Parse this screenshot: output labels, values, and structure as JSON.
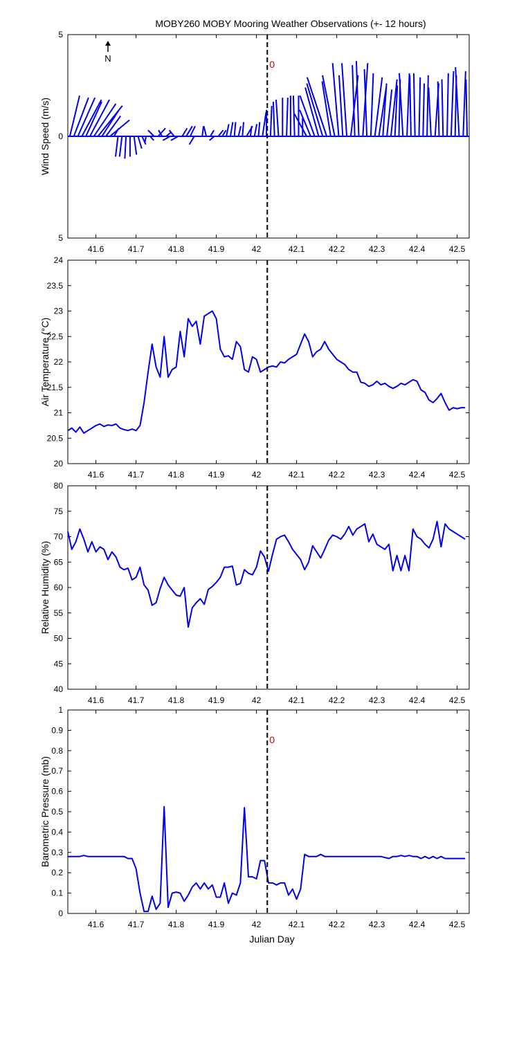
{
  "figure": {
    "title": "MOBY260 MOBY Mooring Weather Observations (+- 12 hours)",
    "xlabel": "Julian Day",
    "north_label": "N",
    "line_color": "#0000ee",
    "marker_color": "#cc0000",
    "marker_x": 42.027
  },
  "chart_data": [
    {
      "type": "line",
      "subtype": "wind-stick",
      "ylabel": "Wind Speed (m/s)",
      "xlim": [
        41.53,
        42.53
      ],
      "ylim": [
        -5,
        5
      ],
      "yticks": [
        5,
        0,
        5
      ],
      "xticks": [
        41.6,
        41.7,
        41.8,
        41.9,
        42,
        42.1,
        42.2,
        42.3,
        42.4,
        42.5
      ],
      "annotation": "0",
      "series": [
        {
          "x": [
            41.535,
            41.545,
            41.555,
            41.565,
            41.575,
            41.585,
            41.595,
            41.605,
            41.615,
            41.625,
            41.635,
            41.645,
            41.655,
            41.665,
            41.675,
            41.685,
            41.695,
            41.705,
            41.715,
            41.725,
            41.735,
            41.745,
            41.755,
            41.765,
            41.775,
            41.785,
            41.795,
            41.805,
            41.815,
            41.825,
            41.835,
            41.845,
            41.855,
            41.865,
            41.875,
            41.885,
            41.895,
            41.905,
            41.915,
            41.925,
            41.935,
            41.945,
            41.955,
            41.965,
            41.975,
            41.985,
            41.995,
            42.005,
            42.015,
            42.025,
            42.035,
            42.045,
            42.055,
            42.065,
            42.075,
            42.085,
            42.095,
            42.105,
            42.115,
            42.125,
            42.135,
            42.145,
            42.155,
            42.165,
            42.175,
            42.185,
            42.195,
            42.205,
            42.215,
            42.225,
            42.235,
            42.245,
            42.255,
            42.265,
            42.275,
            42.285,
            42.295,
            42.305,
            42.315,
            42.325,
            42.335,
            42.345,
            42.355,
            42.365,
            42.375,
            42.385,
            42.395,
            42.405,
            42.415,
            42.425,
            42.435,
            42.445,
            42.455,
            42.465,
            42.475,
            42.485,
            42.495,
            42.505,
            42.515,
            42.525
          ],
          "u": [
            0.8,
            1.2,
            1.4,
            1.6,
            1.3,
            1.6,
            1.8,
            2.0,
            1.4,
            1.2,
            1.6,
            0.4,
            -0.2,
            -0.2,
            -0.1,
            0.0,
            0.2,
            0.3,
            0.3,
            -0.1,
            0.3,
            -0.5,
            0.6,
            -0.3,
            0.4,
            -0.6,
            -0.4,
            -0.6,
            0.4,
            0.5,
            0.4,
            -0.4,
            0.0,
            0.1,
            -0.2,
            0.3,
            -0.4,
            0.4,
            0.3,
            0.2,
            0.2,
            0.1,
            0.2,
            0.1,
            0.5,
            0.1,
            0.2,
            0.1,
            0.3,
            0.0,
            0.1,
            -0.1,
            -0.2,
            0.0,
            0.1,
            0.0,
            -0.1,
            0.0,
            0.0,
            -1.0,
            -0.9,
            -1.2,
            -1.1,
            -1.3,
            -1.6,
            -0.7,
            -1.0,
            -0.5,
            -0.3,
            -0.4,
            0.6,
            -0.2,
            -0.2,
            0.4,
            -0.2,
            0.2,
            0.6,
            0.6,
            0.3,
            0.4,
            0.5,
            0.2,
            0.1,
            -0.3,
            0.2,
            -0.1,
            -0.1,
            0.1,
            0.1,
            0.1,
            -0.2,
            0.3,
            -0.1,
            -0.1,
            0.1,
            0.2,
            0.1,
            -0.3,
            0.2,
            -0.1
          ],
          "v": [
            2.0,
            1.9,
            1.9,
            1.8,
            1.7,
            1.8,
            1.6,
            1.5,
            1.3,
            1.0,
            0.8,
            0.4,
            -1.0,
            -1.0,
            -1.1,
            -1.0,
            -0.9,
            -0.6,
            -0.4,
            -0.3,
            -0.2,
            0.3,
            0.4,
            0.3,
            0.2,
            -0.2,
            0.3,
            -0.2,
            0.4,
            0.5,
            0.5,
            -0.4,
            0.0,
            0.5,
            0.5,
            0.3,
            -0.2,
            0.3,
            0.3,
            0.6,
            0.7,
            0.7,
            0.5,
            0.7,
            0.5,
            0.5,
            0.6,
            0.7,
            1.2,
            1.3,
            1.5,
            1.7,
            1.8,
            1.9,
            1.9,
            2.0,
            2.0,
            2.0,
            0.9,
            1.1,
            1.3,
            2.0,
            2.4,
            2.6,
            2.9,
            2.7,
            3.0,
            3.6,
            3.0,
            3.6,
            3.0,
            3.5,
            3.7,
            3.6,
            3.3,
            3.1,
            2.9,
            2.4,
            2.6,
            2.3,
            2.8,
            2.5,
            2.8,
            3.1,
            3.1,
            3.0,
            3.1,
            2.9,
            2.6,
            3.0,
            2.4,
            2.6,
            2.7,
            2.8,
            3.1,
            3.2,
            3.0,
            3.4,
            3.2,
            2.8
          ]
        }
      ]
    },
    {
      "type": "line",
      "ylabel": "Air Temperature (°C)",
      "xlim": [
        41.53,
        42.53
      ],
      "ylim": [
        20,
        24
      ],
      "yticks": [
        20,
        20.5,
        21,
        21.5,
        22,
        22.5,
        23,
        23.5,
        24
      ],
      "xticks": [
        41.6,
        41.7,
        41.8,
        41.9,
        42,
        42.1,
        42.2,
        42.3,
        42.4,
        42.5
      ],
      "series": [
        {
          "x": [
            41.53,
            41.54,
            41.55,
            41.56,
            41.57,
            41.58,
            41.59,
            41.6,
            41.61,
            41.62,
            41.63,
            41.64,
            41.65,
            41.66,
            41.67,
            41.68,
            41.69,
            41.7,
            41.71,
            41.72,
            41.73,
            41.74,
            41.75,
            41.76,
            41.77,
            41.78,
            41.79,
            41.8,
            41.81,
            41.82,
            41.83,
            41.84,
            41.85,
            41.86,
            41.87,
            41.88,
            41.89,
            41.9,
            41.91,
            41.92,
            41.93,
            41.94,
            41.95,
            41.96,
            41.97,
            41.98,
            41.99,
            42.0,
            42.01,
            42.02,
            42.03,
            42.04,
            42.05,
            42.06,
            42.07,
            42.08,
            42.09,
            42.1,
            42.11,
            42.12,
            42.13,
            42.14,
            42.15,
            42.16,
            42.17,
            42.18,
            42.19,
            42.2,
            42.21,
            42.22,
            42.23,
            42.24,
            42.25,
            42.26,
            42.27,
            42.28,
            42.29,
            42.3,
            42.31,
            42.32,
            42.33,
            42.34,
            42.35,
            42.36,
            42.37,
            42.38,
            42.39,
            42.4,
            42.41,
            42.42,
            42.43,
            42.44,
            42.45,
            42.46,
            42.47,
            42.48,
            42.49,
            42.5,
            42.51,
            42.52
          ],
          "values": [
            20.65,
            20.7,
            20.62,
            20.72,
            20.6,
            20.65,
            20.7,
            20.75,
            20.78,
            20.73,
            20.76,
            20.75,
            20.78,
            20.7,
            20.67,
            20.65,
            20.68,
            20.65,
            20.75,
            21.2,
            21.8,
            22.35,
            21.9,
            21.7,
            22.5,
            21.7,
            21.85,
            21.9,
            22.6,
            22.1,
            22.85,
            22.7,
            22.8,
            22.35,
            22.9,
            22.95,
            23.0,
            22.85,
            22.25,
            22.1,
            22.12,
            22.05,
            22.4,
            22.3,
            21.85,
            21.8,
            22.1,
            22.05,
            21.8,
            21.85,
            21.9,
            21.92,
            21.9,
            22.0,
            21.98,
            22.05,
            22.1,
            22.15,
            22.35,
            22.55,
            22.4,
            22.1,
            22.2,
            22.25,
            22.4,
            22.25,
            22.15,
            22.05,
            22.0,
            21.95,
            21.85,
            21.8,
            21.8,
            21.6,
            21.58,
            21.52,
            21.55,
            21.62,
            21.55,
            21.58,
            21.52,
            21.48,
            21.52,
            21.58,
            21.55,
            21.6,
            21.65,
            21.62,
            21.45,
            21.4,
            21.25,
            21.2,
            21.28,
            21.38,
            21.2,
            21.05,
            21.1,
            21.08,
            21.1,
            21.1
          ]
        }
      ]
    },
    {
      "type": "line",
      "ylabel": "Relative Humidity (%)",
      "xlim": [
        41.53,
        42.53
      ],
      "ylim": [
        40,
        80
      ],
      "yticks": [
        40,
        45,
        50,
        55,
        60,
        65,
        70,
        75,
        80
      ],
      "xticks": [
        41.6,
        41.7,
        41.8,
        41.9,
        42,
        42.1,
        42.2,
        42.3,
        42.4,
        42.5
      ],
      "series": [
        {
          "x": [
            41.53,
            41.54,
            41.55,
            41.56,
            41.57,
            41.58,
            41.59,
            41.6,
            41.61,
            41.62,
            41.63,
            41.64,
            41.65,
            41.66,
            41.67,
            41.68,
            41.69,
            41.7,
            41.71,
            41.72,
            41.73,
            41.74,
            41.75,
            41.76,
            41.77,
            41.78,
            41.79,
            41.8,
            41.81,
            41.82,
            41.83,
            41.84,
            41.85,
            41.86,
            41.87,
            41.88,
            41.89,
            41.9,
            41.91,
            41.92,
            41.93,
            41.94,
            41.95,
            41.96,
            41.97,
            41.98,
            41.99,
            42.0,
            42.01,
            42.02,
            42.03,
            42.04,
            42.05,
            42.06,
            42.07,
            42.08,
            42.09,
            42.1,
            42.11,
            42.12,
            42.13,
            42.14,
            42.15,
            42.16,
            42.17,
            42.18,
            42.19,
            42.2,
            42.21,
            42.22,
            42.23,
            42.24,
            42.25,
            42.26,
            42.27,
            42.28,
            42.29,
            42.3,
            42.31,
            42.32,
            42.33,
            42.34,
            42.35,
            42.36,
            42.37,
            42.38,
            42.39,
            42.4,
            42.41,
            42.42,
            42.43,
            42.44,
            42.45,
            42.46,
            42.47,
            42.48,
            42.49,
            42.5,
            42.51,
            42.52
          ],
          "values": [
            71,
            67.5,
            69,
            71.5,
            69.5,
            67,
            69,
            67,
            68,
            67.5,
            65.5,
            67,
            66,
            64,
            63.5,
            63.8,
            61.5,
            62,
            64,
            60.5,
            59.5,
            56.5,
            57,
            59.8,
            62,
            60.5,
            59.5,
            58.5,
            58.3,
            60,
            52.2,
            56,
            57,
            57.8,
            56.7,
            59.6,
            60.2,
            61,
            62,
            64,
            64,
            64.2,
            60.5,
            60.8,
            63.5,
            62.8,
            62.5,
            64,
            67.2,
            66,
            63.2,
            66.5,
            69.5,
            70,
            70.3,
            69,
            67.5,
            66.5,
            65.5,
            63.5,
            65,
            68.2,
            67,
            65.8,
            67.5,
            69.3,
            70.3,
            70,
            69.5,
            70.5,
            72,
            70.3,
            71.5,
            72,
            72.5,
            69,
            70.5,
            68.5,
            68,
            67.5,
            68.5,
            63.3,
            66.3,
            63.3,
            66.3,
            63.3,
            71.5,
            70,
            69.5,
            68.5,
            67.8,
            69.5,
            73,
            68,
            72.5,
            71.5,
            71,
            70.5,
            70,
            69.5
          ]
        }
      ]
    },
    {
      "type": "line",
      "ylabel": "Barometric Pressure (mb)",
      "xlim": [
        41.53,
        42.53
      ],
      "ylim": [
        0,
        1
      ],
      "yticks": [
        0,
        0.1,
        0.2,
        0.3,
        0.4,
        0.5,
        0.6,
        0.7,
        0.8,
        0.9,
        1
      ],
      "xticks": [
        41.6,
        41.7,
        41.8,
        41.9,
        42,
        42.1,
        42.2,
        42.3,
        42.4,
        42.5
      ],
      "annotation": "0",
      "series": [
        {
          "x": [
            41.53,
            41.54,
            41.55,
            41.56,
            41.57,
            41.58,
            41.59,
            41.6,
            41.61,
            41.62,
            41.63,
            41.64,
            41.65,
            41.66,
            41.67,
            41.68,
            41.69,
            41.7,
            41.71,
            41.72,
            41.73,
            41.74,
            41.75,
            41.76,
            41.77,
            41.78,
            41.79,
            41.8,
            41.81,
            41.82,
            41.83,
            41.84,
            41.85,
            41.86,
            41.87,
            41.88,
            41.89,
            41.9,
            41.91,
            41.92,
            41.93,
            41.94,
            41.95,
            41.96,
            41.97,
            41.98,
            41.99,
            42.0,
            42.01,
            42.02,
            42.03,
            42.04,
            42.05,
            42.06,
            42.07,
            42.08,
            42.09,
            42.1,
            42.11,
            42.12,
            42.13,
            42.14,
            42.15,
            42.16,
            42.17,
            42.18,
            42.19,
            42.2,
            42.21,
            42.22,
            42.23,
            42.24,
            42.25,
            42.26,
            42.27,
            42.28,
            42.29,
            42.3,
            42.31,
            42.32,
            42.33,
            42.34,
            42.35,
            42.36,
            42.37,
            42.38,
            42.39,
            42.4,
            42.41,
            42.42,
            42.43,
            42.44,
            42.45,
            42.46,
            42.47,
            42.48,
            42.49,
            42.5,
            42.51,
            42.52
          ],
          "values": [
            0.28,
            0.28,
            0.28,
            0.28,
            0.285,
            0.28,
            0.28,
            0.28,
            0.28,
            0.28,
            0.28,
            0.28,
            0.28,
            0.28,
            0.28,
            0.27,
            0.27,
            0.22,
            0.1,
            0.01,
            0.01,
            0.085,
            0.02,
            0.05,
            0.525,
            0.03,
            0.1,
            0.105,
            0.1,
            0.06,
            0.09,
            0.13,
            0.15,
            0.12,
            0.15,
            0.12,
            0.14,
            0.08,
            0.08,
            0.15,
            0.05,
            0.1,
            0.09,
            0.15,
            0.52,
            0.18,
            0.18,
            0.17,
            0.26,
            0.26,
            0.15,
            0.15,
            0.14,
            0.15,
            0.15,
            0.09,
            0.12,
            0.07,
            0.12,
            0.29,
            0.28,
            0.28,
            0.28,
            0.29,
            0.28,
            0.28,
            0.28,
            0.28,
            0.28,
            0.28,
            0.28,
            0.28,
            0.28,
            0.28,
            0.28,
            0.28,
            0.28,
            0.28,
            0.28,
            0.275,
            0.27,
            0.28,
            0.28,
            0.285,
            0.28,
            0.285,
            0.28,
            0.28,
            0.27,
            0.28,
            0.27,
            0.28,
            0.27,
            0.28,
            0.27,
            0.27,
            0.27,
            0.27,
            0.27,
            0.27
          ]
        }
      ]
    }
  ]
}
